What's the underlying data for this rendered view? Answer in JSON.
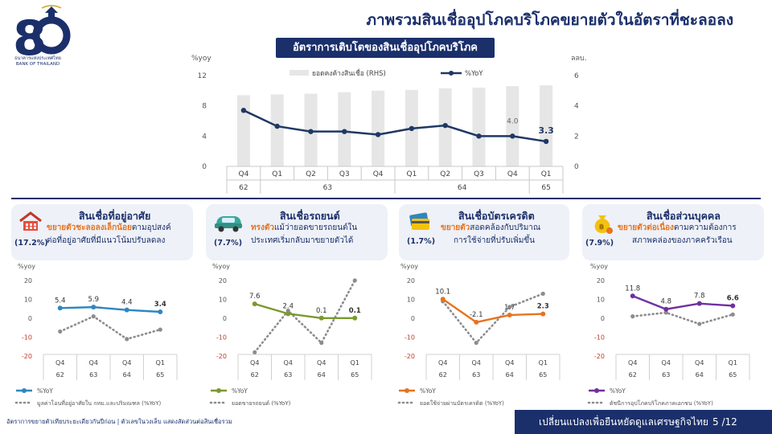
{
  "header": {
    "title": "ภาพรวมสินเชื่ออุปโภคบริโภคขยายตัวในอัตราที่ชะลอลง",
    "logo_text_th": "ธนาคารแห่งประเทศไทย",
    "logo_text_en": "BANK OF THAILAND"
  },
  "main_chart_banner": "อัตราการเติบโตของสินเชื่ออุปโภคบริโภค",
  "chart_data": [
    {
      "type": "bar",
      "id": "main",
      "categories": [
        "Q4",
        "Q1",
        "Q2",
        "Q3",
        "Q4",
        "Q1",
        "Q2",
        "Q3",
        "Q4",
        "Q1"
      ],
      "year_groups": [
        {
          "label": "62",
          "count": 1
        },
        {
          "label": "63",
          "count": 4
        },
        {
          "label": "64",
          "count": 4
        },
        {
          "label": "65",
          "count": 1
        }
      ],
      "series": [
        {
          "name": "ยอดคงค้างสินเชื่อ (RHS)",
          "axis": "right",
          "type": "bar",
          "values": [
            4.7,
            4.75,
            4.8,
            4.9,
            5.0,
            5.05,
            5.15,
            5.2,
            5.3,
            5.35
          ]
        },
        {
          "name": "%YoY",
          "axis": "left",
          "type": "line",
          "values": [
            7.4,
            5.3,
            4.6,
            4.6,
            4.2,
            5.0,
            5.4,
            4.0,
            4.0,
            3.3
          ]
        }
      ],
      "point_labels": [
        {
          "index": 8,
          "text": "4.0"
        },
        {
          "index": 9,
          "text": "3.3"
        }
      ],
      "ylabel_left": "%yoy",
      "ylabel_right": "ลลบ.",
      "ylim_left": [
        0,
        12
      ],
      "yticks_left": [
        "0",
        "4",
        "8",
        "12"
      ],
      "ylim_right": [
        0,
        6
      ],
      "yticks_right": [
        "0",
        "2",
        "4",
        "6"
      ],
      "colors": {
        "bar": "#e6e6e6",
        "line": "#1f3864"
      }
    },
    {
      "type": "line",
      "id": "housing",
      "title": "สินเชื่อที่อยู่อาศัย",
      "share": "(17.2%)",
      "desc_lines": [
        {
          "highlight": "ขยายตัวชะลอลงเล็กน้อย",
          "rest": "ตามอุปสงค์"
        },
        {
          "highlight": "",
          "rest": "ต่อที่อยู่อาศัยที่มีแนวโน้มปรับลดลง"
        }
      ],
      "icon": "house-icon",
      "categories": [
        "Q4",
        "Q4",
        "Q4",
        "Q1"
      ],
      "years": [
        "62",
        "63",
        "64",
        "65"
      ],
      "ylabel": "%yoy",
      "ylim": [
        -20,
        20
      ],
      "yticks": [
        "-20",
        "-10",
        "0",
        "10",
        "20"
      ],
      "series": [
        {
          "name": "%YoY",
          "color": "#2e86c1",
          "style": "solid",
          "values": [
            5.4,
            5.9,
            4.4,
            3.4
          ],
          "labels": [
            "5.4",
            "5.9",
            "4.4",
            "3.4"
          ]
        },
        {
          "name": "มูลค่าโอนที่อยู่อาศัยใน กทม.และปริมณฑล (%YoY)",
          "color": "#8c8c8c",
          "style": "dotted",
          "values": [
            -7,
            1,
            -11,
            -6
          ],
          "labels": []
        }
      ]
    },
    {
      "type": "line",
      "id": "auto",
      "title": "สินเชื่อรถยนต์",
      "share": "(7.7%)",
      "desc_lines": [
        {
          "highlight": "ทรงตัว",
          "rest": "แม้ว่ายอดขายรถยนต์ใน"
        },
        {
          "highlight": "",
          "rest": "ประเทศเริ่มกลับมาขยายตัวได้"
        }
      ],
      "icon": "car-icon",
      "categories": [
        "Q4",
        "Q4",
        "Q4",
        "Q1"
      ],
      "years": [
        "62",
        "63",
        "64",
        "65"
      ],
      "ylabel": "%yoy",
      "ylim": [
        -20,
        20
      ],
      "yticks": [
        "-20",
        "-10",
        "0",
        "10",
        "20"
      ],
      "series": [
        {
          "name": "%YoY",
          "color": "#7a9a2e",
          "style": "solid",
          "values": [
            7.6,
            2.4,
            0.1,
            0.1
          ],
          "labels": [
            "7.6",
            "2.4",
            "0.1",
            "0.1"
          ]
        },
        {
          "name": "ยอดขายรถยนต์ (%YoY)",
          "color": "#8c8c8c",
          "style": "dotted",
          "values": [
            -18,
            4,
            -13,
            20
          ],
          "labels": []
        }
      ]
    },
    {
      "type": "line",
      "id": "credit-card",
      "title": "สินเชื่อบัตรเครดิต",
      "share": "(1.7%)",
      "desc_lines": [
        {
          "highlight": "ขยายตัว",
          "rest": "สอดคล้องกับปริมาณ"
        },
        {
          "highlight": "",
          "rest": "การใช้จ่ายที่ปรับเพิ่มขึ้น"
        }
      ],
      "icon": "credit-card-icon",
      "categories": [
        "Q4",
        "Q4",
        "Q4",
        "Q1"
      ],
      "years": [
        "62",
        "63",
        "64",
        "65"
      ],
      "ylabel": "%yoy",
      "ylim": [
        -20,
        20
      ],
      "yticks": [
        "-20",
        "-10",
        "0",
        "10",
        "20"
      ],
      "series": [
        {
          "name": "%YoY",
          "color": "#e6731f",
          "style": "solid",
          "values": [
            10.1,
            -2.1,
            1.7,
            2.3
          ],
          "labels": [
            "10.1",
            "-2.1",
            "1.7",
            "2.3"
          ]
        },
        {
          "name": "ยอดใช้จ่ายผ่านบัตรเครดิต (%YoY)",
          "color": "#8c8c8c",
          "style": "dotted",
          "values": [
            9,
            -13,
            6,
            13
          ],
          "labels": []
        }
      ]
    },
    {
      "type": "line",
      "id": "personal",
      "title": "สินเชื่อส่วนบุคคล",
      "share": "(7.9%)",
      "desc_lines": [
        {
          "highlight": "ขยายตัวต่อเนื่อง",
          "rest": "ตามความต้องการ"
        },
        {
          "highlight": "",
          "rest": "สภาพคล่องของภาคครัวเรือน"
        }
      ],
      "icon": "money-bag-icon",
      "categories": [
        "Q4",
        "Q4",
        "Q4",
        "Q1"
      ],
      "years": [
        "62",
        "63",
        "64",
        "65"
      ],
      "ylabel": "%yoy",
      "ylim": [
        -20,
        20
      ],
      "yticks": [
        "-20",
        "-10",
        "0",
        "10",
        "20"
      ],
      "series": [
        {
          "name": "%YoY",
          "color": "#7030a0",
          "style": "solid",
          "values": [
            11.8,
            4.8,
            7.8,
            6.6
          ],
          "labels": [
            "11.8",
            "4.8",
            "7.8",
            "6.6"
          ]
        },
        {
          "name": "ดัชนีการอุปโภคบริโภคภาคเอกชน (%YoY)",
          "color": "#8c8c8c",
          "style": "dotted",
          "values": [
            1,
            3,
            -3,
            2
          ],
          "labels": []
        }
      ]
    }
  ],
  "footer": {
    "note": "อัตราการขยายตัวเทียบระยะเดียวกันปีก่อน | ตัวเลขในวงเล็บ แสดงสัดส่วนต่อสินเชื่อรวม",
    "tagline": "เปลี่ยนแปลงเพื่อยืนหยัดดูแลเศรษฐกิจไทย",
    "page": "5 /12"
  }
}
